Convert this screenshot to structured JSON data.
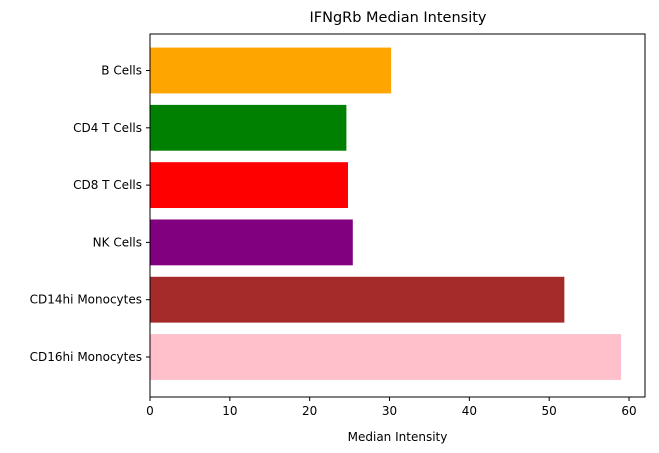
{
  "chart_data": {
    "type": "bar",
    "orientation": "horizontal",
    "title": "IFNgRb Median Intensity",
    "xlabel": "Median Intensity",
    "ylabel": "",
    "categories": [
      "B Cells",
      "CD4 T Cells",
      "CD8 T Cells",
      "NK Cells",
      "CD14hi Monocytes",
      "CD16hi Monocytes"
    ],
    "values": [
      30.2,
      24.6,
      24.8,
      25.4,
      51.9,
      59.0
    ],
    "colors": [
      "#ffa500",
      "#008000",
      "#ff0000",
      "#800080",
      "#a52a2a",
      "#ffc0cb"
    ],
    "xlim": [
      0,
      62
    ],
    "xticks": [
      0,
      10,
      20,
      30,
      40,
      50,
      60
    ],
    "grid": false,
    "legend": "none"
  }
}
